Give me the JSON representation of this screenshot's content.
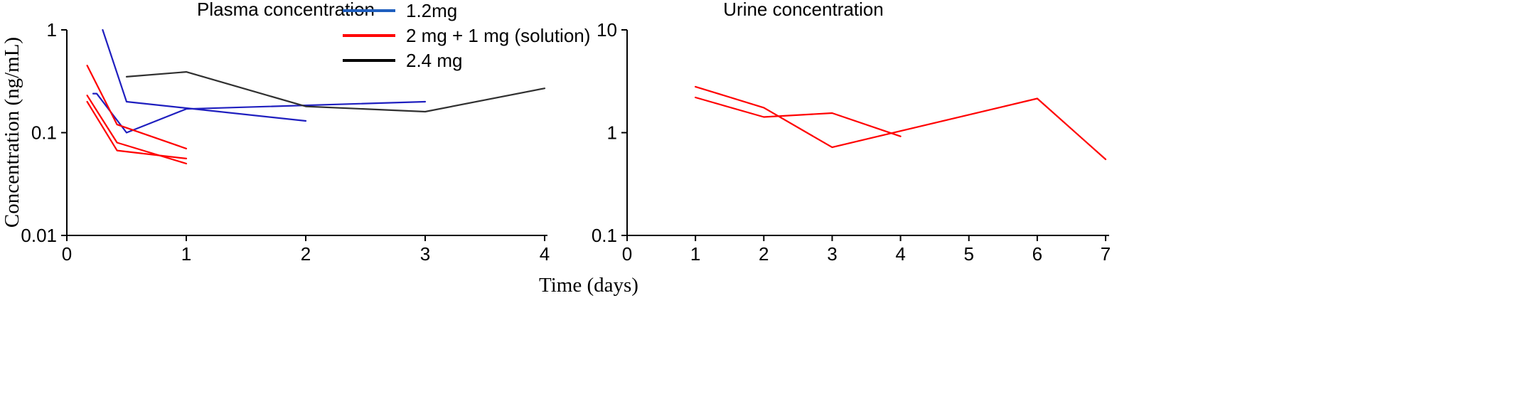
{
  "chart_data": [
    {
      "type": "line",
      "title": "Plasma concentration",
      "ylabel": "Concentration (ng/mL)",
      "xlim": [
        0,
        4
      ],
      "ylim": [
        0.01,
        1
      ],
      "yscale": "log",
      "grid": false,
      "xticks": [
        "0",
        "1",
        "2",
        "3",
        "4"
      ],
      "yticks": [
        {
          "value": 0.01,
          "label": "0.01"
        },
        {
          "value": 0.1,
          "label": "0.1"
        },
        {
          "value": 1,
          "label": "1"
        }
      ],
      "legend": {
        "placement": "top-center",
        "entries": [
          {
            "label": "1.2mg",
            "color": "#1f5fbf"
          },
          {
            "label": "2 mg + 1 mg (solution)",
            "color": "#ff0000"
          },
          {
            "label": "2.4 mg",
            "color": "#000000"
          }
        ]
      },
      "series": [
        {
          "group": "1.2mg",
          "color": "#1f1fbf",
          "points": [
            [
              0.3,
              1.0
            ],
            [
              0.5,
              0.2
            ],
            [
              2.0,
              0.13
            ]
          ]
        },
        {
          "group": "1.2mg",
          "color": "#1f1fbf",
          "points": [
            [
              0.22,
              0.24
            ],
            [
              0.25,
              0.24
            ],
            [
              0.5,
              0.1
            ],
            [
              1.0,
              0.17
            ],
            [
              3.0,
              0.2
            ]
          ]
        },
        {
          "group": "2 mg + 1 mg (solution)",
          "color": "#ff0000",
          "points": [
            [
              0.17,
              0.45
            ],
            [
              0.42,
              0.12
            ],
            [
              1.0,
              0.07
            ]
          ]
        },
        {
          "group": "2 mg + 1 mg (solution)",
          "color": "#ff0000",
          "points": [
            [
              0.17,
              0.23
            ],
            [
              0.42,
              0.08
            ],
            [
              1.0,
              0.05
            ]
          ]
        },
        {
          "group": "2 mg + 1 mg (solution)",
          "color": "#ff0000",
          "points": [
            [
              0.17,
              0.2
            ],
            [
              0.42,
              0.067
            ],
            [
              1.0,
              0.056
            ]
          ]
        },
        {
          "group": "2.4 mg",
          "color": "#303030",
          "points": [
            [
              0.5,
              0.35
            ],
            [
              1.0,
              0.39
            ],
            [
              2.0,
              0.18
            ],
            [
              3.0,
              0.16
            ],
            [
              4.0,
              0.27
            ]
          ]
        }
      ]
    },
    {
      "type": "line",
      "title": "Urine concentration",
      "xlim": [
        0,
        7
      ],
      "ylim": [
        0.1,
        10
      ],
      "yscale": "log",
      "grid": false,
      "xticks": [
        "0",
        "1",
        "2",
        "3",
        "4",
        "5",
        "6",
        "7"
      ],
      "yticks": [
        {
          "value": 0.1,
          "label": "0.1"
        },
        {
          "value": 1,
          "label": "1"
        },
        {
          "value": 10,
          "label": "10"
        }
      ],
      "series": [
        {
          "group": "2 mg + 1 mg (solution)",
          "color": "#ff0000",
          "points": [
            [
              1,
              2.8
            ],
            [
              2,
              1.75
            ],
            [
              3,
              0.72
            ],
            [
              6,
              2.15
            ],
            [
              7,
              0.55
            ]
          ]
        },
        {
          "group": "2 mg + 1 mg (solution)",
          "color": "#ff0000",
          "points": [
            [
              1,
              2.2
            ],
            [
              2,
              1.42
            ],
            [
              3,
              1.55
            ],
            [
              4,
              0.92
            ]
          ]
        }
      ]
    }
  ],
  "shared": {
    "xlabel": "Time (days)"
  }
}
